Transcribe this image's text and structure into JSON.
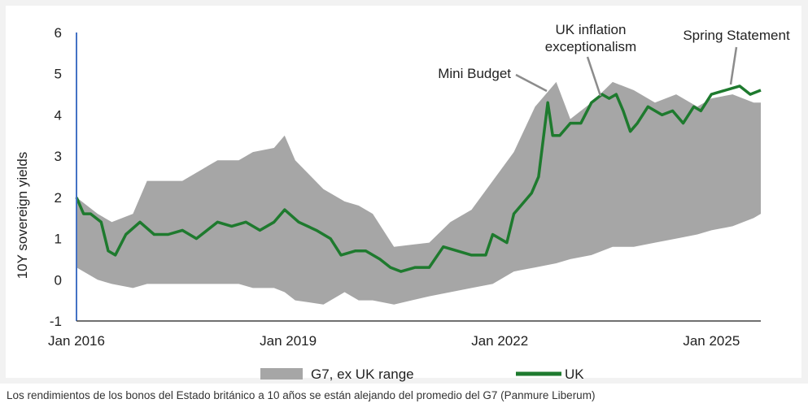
{
  "chart_data": {
    "type": "area",
    "ylabel": "10Y sovereign yields",
    "ylim": [
      -1,
      6
    ],
    "yticks": [
      "6",
      "5",
      "4",
      "3",
      "2",
      "1",
      "0",
      "-1"
    ],
    "xlim": [
      2016.0,
      2025.7
    ],
    "xticks": [
      {
        "label": "Jan 2016",
        "x": 2016.0
      },
      {
        "label": "Jan 2019",
        "x": 2019.0
      },
      {
        "label": "Jan 2022",
        "x": 2022.0
      },
      {
        "label": "Jan 2025",
        "x": 2025.0
      }
    ],
    "grid": false,
    "legend_position": "bottom",
    "series": [
      {
        "name": "G7, ex UK range",
        "kind": "range",
        "color": "#a6a6a6",
        "x": [
          2016.0,
          2016.3,
          2016.5,
          2016.8,
          2017.0,
          2017.5,
          2018.0,
          2018.3,
          2018.5,
          2018.8,
          2018.95,
          2019.1,
          2019.5,
          2019.8,
          2020.0,
          2020.2,
          2020.5,
          2021.0,
          2021.3,
          2021.6,
          2021.9,
          2022.2,
          2022.5,
          2022.8,
          2023.0,
          2023.3,
          2023.6,
          2023.9,
          2024.2,
          2024.5,
          2024.8,
          2025.0,
          2025.3,
          2025.6,
          2025.7
        ],
        "high": [
          2.0,
          1.6,
          1.4,
          1.6,
          2.4,
          2.4,
          2.9,
          2.9,
          3.1,
          3.2,
          3.5,
          2.9,
          2.2,
          1.9,
          1.8,
          1.6,
          0.8,
          0.9,
          1.4,
          1.7,
          2.4,
          3.1,
          4.2,
          4.8,
          3.9,
          4.3,
          4.8,
          4.6,
          4.3,
          4.5,
          4.2,
          4.4,
          4.5,
          4.3,
          4.3
        ],
        "low": [
          0.3,
          0.0,
          -0.1,
          -0.2,
          -0.1,
          -0.1,
          -0.1,
          -0.1,
          -0.2,
          -0.2,
          -0.3,
          -0.5,
          -0.6,
          -0.3,
          -0.5,
          -0.5,
          -0.6,
          -0.4,
          -0.3,
          -0.2,
          -0.1,
          0.2,
          0.3,
          0.4,
          0.5,
          0.6,
          0.8,
          0.8,
          0.9,
          1.0,
          1.1,
          1.2,
          1.3,
          1.5,
          1.6
        ]
      },
      {
        "name": "UK",
        "kind": "line",
        "color": "#1e7a2e",
        "x": [
          2016.0,
          2016.1,
          2016.2,
          2016.35,
          2016.45,
          2016.55,
          2016.7,
          2016.9,
          2017.1,
          2017.3,
          2017.5,
          2017.7,
          2018.0,
          2018.2,
          2018.4,
          2018.6,
          2018.8,
          2018.95,
          2019.15,
          2019.4,
          2019.6,
          2019.75,
          2019.95,
          2020.1,
          2020.3,
          2020.45,
          2020.6,
          2020.8,
          2021.0,
          2021.2,
          2021.4,
          2021.6,
          2021.8,
          2021.9,
          2022.1,
          2022.2,
          2022.3,
          2022.45,
          2022.55,
          2022.68,
          2022.75,
          2022.85,
          2023.0,
          2023.15,
          2023.3,
          2023.45,
          2023.55,
          2023.65,
          2023.75,
          2023.85,
          2023.95,
          2024.1,
          2024.3,
          2024.45,
          2024.6,
          2024.75,
          2024.85,
          2025.0,
          2025.2,
          2025.4,
          2025.55,
          2025.7
        ],
        "y": [
          2.0,
          1.6,
          1.6,
          1.4,
          0.7,
          0.6,
          1.1,
          1.4,
          1.1,
          1.1,
          1.2,
          1.0,
          1.4,
          1.3,
          1.4,
          1.2,
          1.4,
          1.7,
          1.4,
          1.2,
          1.0,
          0.6,
          0.7,
          0.7,
          0.5,
          0.3,
          0.2,
          0.3,
          0.3,
          0.8,
          0.7,
          0.6,
          0.6,
          1.1,
          0.9,
          1.6,
          1.8,
          2.1,
          2.5,
          4.3,
          3.5,
          3.5,
          3.8,
          3.8,
          4.3,
          4.5,
          4.4,
          4.5,
          4.1,
          3.6,
          3.8,
          4.2,
          4.0,
          4.1,
          3.8,
          4.2,
          4.1,
          4.5,
          4.6,
          4.7,
          4.5,
          4.6
        ]
      }
    ],
    "annotations": [
      {
        "lines": [
          "Mini Budget"
        ],
        "x": 2022.7,
        "y": 4.3
      },
      {
        "lines": [
          "UK inflation",
          "exceptionalism"
        ],
        "x": 2023.45,
        "y": 4.45
      },
      {
        "lines": [
          "Spring Statement"
        ],
        "x": 2025.25,
        "y": 4.65
      }
    ]
  },
  "legend": {
    "range_label": "G7, ex UK range",
    "line_label": "UK"
  },
  "caption": "Los rendimientos de los bonos del Estado británico a 10 años se están alejando del promedio del G7 (Panmure Liberum)"
}
